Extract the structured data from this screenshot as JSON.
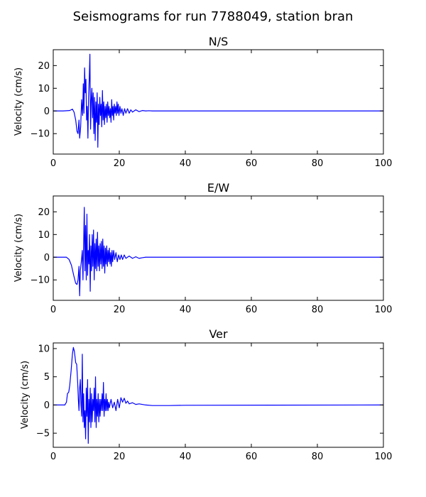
{
  "figure": {
    "title": "Seismograms for run 7788049, station bran"
  },
  "chart_data": [
    {
      "type": "line",
      "title": "N/S",
      "xlabel": "",
      "ylabel": "Velocity (cm/s)",
      "xlim": [
        0,
        100
      ],
      "ylim": [
        -19,
        27
      ],
      "xticks": [
        0,
        20,
        40,
        60,
        80,
        100
      ],
      "yticks": [
        -10,
        0,
        10,
        20
      ],
      "grid": false,
      "series": [
        {
          "color": "#0000ff",
          "points": [
            [
              0,
              0
            ],
            [
              3,
              0
            ],
            [
              5,
              0.2
            ],
            [
              5.8,
              0.8
            ],
            [
              6.3,
              -0.5
            ],
            [
              6.8,
              -4
            ],
            [
              7.2,
              -9
            ],
            [
              7.5,
              -10
            ],
            [
              7.8,
              -4
            ],
            [
              8.0,
              -12
            ],
            [
              8.3,
              -7
            ],
            [
              8.6,
              5
            ],
            [
              8.9,
              -2
            ],
            [
              9.1,
              12
            ],
            [
              9.3,
              -1
            ],
            [
              9.5,
              19
            ],
            [
              9.7,
              8
            ],
            [
              9.9,
              14
            ],
            [
              10.1,
              -4
            ],
            [
              10.3,
              2
            ],
            [
              10.5,
              -12
            ],
            [
              10.7,
              6
            ],
            [
              10.9,
              14
            ],
            [
              11.1,
              25
            ],
            [
              11.3,
              -8
            ],
            [
              11.5,
              5
            ],
            [
              11.7,
              10
            ],
            [
              11.9,
              -3
            ],
            [
              12.1,
              8
            ],
            [
              12.3,
              -10
            ],
            [
              12.5,
              6
            ],
            [
              12.7,
              -13
            ],
            [
              12.9,
              4
            ],
            [
              13.1,
              -5
            ],
            [
              13.3,
              8
            ],
            [
              13.5,
              -16
            ],
            [
              13.7,
              3
            ],
            [
              13.9,
              -6
            ],
            [
              14.1,
              6
            ],
            [
              14.3,
              -2
            ],
            [
              14.5,
              3
            ],
            [
              14.7,
              -7
            ],
            [
              14.9,
              9
            ],
            [
              15.1,
              -4
            ],
            [
              15.3,
              4
            ],
            [
              15.5,
              -6
            ],
            [
              15.7,
              2
            ],
            [
              15.9,
              -3
            ],
            [
              16.1,
              3
            ],
            [
              16.3,
              -5
            ],
            [
              16.5,
              4
            ],
            [
              16.7,
              -2
            ],
            [
              16.9,
              2
            ],
            [
              17.1,
              -3
            ],
            [
              17.3,
              1
            ],
            [
              17.5,
              -5
            ],
            [
              17.7,
              5
            ],
            [
              17.9,
              -2
            ],
            [
              18.1,
              2
            ],
            [
              18.3,
              -4
            ],
            [
              18.5,
              3
            ],
            [
              18.7,
              -1
            ],
            [
              18.9,
              2
            ],
            [
              19.1,
              -2
            ],
            [
              19.3,
              4
            ],
            [
              19.5,
              -1
            ],
            [
              19.7,
              3
            ],
            [
              19.9,
              -2
            ],
            [
              20.2,
              2
            ],
            [
              20.5,
              -1
            ],
            [
              20.8,
              1
            ],
            [
              21.2,
              -2
            ],
            [
              21.6,
              1
            ],
            [
              22,
              -1
            ],
            [
              22.5,
              1
            ],
            [
              23,
              -1
            ],
            [
              23.5,
              0.5
            ],
            [
              24,
              -0.5
            ],
            [
              25,
              0.5
            ],
            [
              26,
              -0.3
            ],
            [
              27,
              0.2
            ],
            [
              28,
              0
            ],
            [
              29,
              0.1
            ],
            [
              30,
              0
            ],
            [
              100,
              0
            ]
          ]
        }
      ]
    },
    {
      "type": "line",
      "title": "E/W",
      "xlabel": "",
      "ylabel": "Velocity (cm/s)",
      "xlim": [
        0,
        100
      ],
      "ylim": [
        -19,
        27
      ],
      "xticks": [
        0,
        20,
        40,
        60,
        80,
        100
      ],
      "yticks": [
        -10,
        0,
        10,
        20
      ],
      "grid": false,
      "series": [
        {
          "color": "#0000ff",
          "points": [
            [
              0,
              0
            ],
            [
              3,
              0
            ],
            [
              4,
              0
            ],
            [
              4.8,
              -1
            ],
            [
              5.5,
              -3.5
            ],
            [
              6.2,
              -8
            ],
            [
              6.8,
              -11.5
            ],
            [
              7.2,
              -12
            ],
            [
              7.5,
              -10
            ],
            [
              7.8,
              -4
            ],
            [
              8.0,
              -17
            ],
            [
              8.2,
              -6
            ],
            [
              8.5,
              -2
            ],
            [
              8.8,
              3
            ],
            [
              9.0,
              -10
            ],
            [
              9.2,
              5
            ],
            [
              9.4,
              22
            ],
            [
              9.6,
              -6
            ],
            [
              9.8,
              14
            ],
            [
              10.0,
              -10
            ],
            [
              10.2,
              19
            ],
            [
              10.4,
              -8
            ],
            [
              10.6,
              3
            ],
            [
              10.8,
              -3
            ],
            [
              11.0,
              10
            ],
            [
              11.2,
              -15
            ],
            [
              11.4,
              5
            ],
            [
              11.6,
              -6
            ],
            [
              11.8,
              10
            ],
            [
              12.0,
              -4
            ],
            [
              12.2,
              12
            ],
            [
              12.4,
              -10
            ],
            [
              12.6,
              6
            ],
            [
              12.8,
              -5
            ],
            [
              13.0,
              8
            ],
            [
              13.2,
              -6
            ],
            [
              13.4,
              11
            ],
            [
              13.6,
              -4
            ],
            [
              13.8,
              5
            ],
            [
              14.0,
              -6
            ],
            [
              14.2,
              6
            ],
            [
              14.4,
              -3
            ],
            [
              14.6,
              7
            ],
            [
              14.8,
              -5
            ],
            [
              15.0,
              8
            ],
            [
              15.2,
              -4
            ],
            [
              15.4,
              5
            ],
            [
              15.6,
              -7
            ],
            [
              15.8,
              4
            ],
            [
              16.0,
              -3
            ],
            [
              16.2,
              5
            ],
            [
              16.4,
              -4
            ],
            [
              16.6,
              3
            ],
            [
              16.8,
              -2
            ],
            [
              17.0,
              4
            ],
            [
              17.2,
              -3
            ],
            [
              17.4,
              2
            ],
            [
              17.6,
              -4
            ],
            [
              17.8,
              3
            ],
            [
              18.0,
              -2
            ],
            [
              18.3,
              3
            ],
            [
              18.6,
              -1
            ],
            [
              19.0,
              2
            ],
            [
              19.4,
              -2
            ],
            [
              19.8,
              1
            ],
            [
              20.2,
              -1
            ],
            [
              20.6,
              1
            ],
            [
              21,
              -1
            ],
            [
              21.5,
              1
            ],
            [
              22,
              -0.5
            ],
            [
              23,
              0.5
            ],
            [
              24,
              -0.5
            ],
            [
              25,
              0.2
            ],
            [
              26,
              -0.5
            ],
            [
              27,
              -0.2
            ],
            [
              28,
              0
            ],
            [
              100,
              0
            ]
          ]
        }
      ]
    },
    {
      "type": "line",
      "title": "Ver",
      "xlabel": "",
      "ylabel": "Velocity (cm/s)",
      "xlim": [
        0,
        100
      ],
      "ylim": [
        -7.5,
        11
      ],
      "xticks": [
        0,
        20,
        40,
        60,
        80,
        100
      ],
      "yticks": [
        -5,
        0,
        5,
        10
      ],
      "grid": false,
      "series": [
        {
          "color": "#0000ff",
          "points": [
            [
              0,
              0
            ],
            [
              3.5,
              0
            ],
            [
              4.0,
              0.5
            ],
            [
              4.3,
              2
            ],
            [
              4.7,
              2.3
            ],
            [
              5.0,
              3.5
            ],
            [
              5.4,
              6
            ],
            [
              5.8,
              9
            ],
            [
              6.1,
              10.2
            ],
            [
              6.4,
              9.5
            ],
            [
              6.8,
              7.5
            ],
            [
              7.1,
              7.2
            ],
            [
              7.4,
              4
            ],
            [
              7.6,
              1
            ],
            [
              7.8,
              -1
            ],
            [
              8.0,
              3
            ],
            [
              8.2,
              4.5
            ],
            [
              8.4,
              0
            ],
            [
              8.6,
              -2
            ],
            [
              8.8,
              9
            ],
            [
              9.0,
              -3
            ],
            [
              9.2,
              2
            ],
            [
              9.4,
              -4
            ],
            [
              9.6,
              -1
            ],
            [
              9.8,
              -6
            ],
            [
              10.0,
              3
            ],
            [
              10.2,
              -2
            ],
            [
              10.4,
              4.5
            ],
            [
              10.6,
              -6.8
            ],
            [
              10.8,
              1
            ],
            [
              11.0,
              -3
            ],
            [
              11.2,
              3
            ],
            [
              11.4,
              -4
            ],
            [
              11.6,
              2
            ],
            [
              11.8,
              -3
            ],
            [
              12.0,
              1
            ],
            [
              12.2,
              -1
            ],
            [
              12.4,
              3
            ],
            [
              12.6,
              -3
            ],
            [
              12.8,
              5
            ],
            [
              13.0,
              -4
            ],
            [
              13.2,
              1
            ],
            [
              13.4,
              -2
            ],
            [
              13.6,
              2
            ],
            [
              13.8,
              -3
            ],
            [
              14.0,
              1
            ],
            [
              14.2,
              -2
            ],
            [
              14.4,
              1
            ],
            [
              14.6,
              -1
            ],
            [
              14.8,
              2
            ],
            [
              15.0,
              -1
            ],
            [
              15.2,
              4
            ],
            [
              15.4,
              -2
            ],
            [
              15.6,
              1
            ],
            [
              15.8,
              -1
            ],
            [
              16.0,
              2
            ],
            [
              16.2,
              -1
            ],
            [
              16.4,
              1
            ],
            [
              16.6,
              -1
            ],
            [
              16.8,
              0.5
            ],
            [
              17.0,
              -0.5
            ],
            [
              17.5,
              1
            ],
            [
              18,
              -0.5
            ],
            [
              18.5,
              0.5
            ],
            [
              19,
              -1
            ],
            [
              19.5,
              1
            ],
            [
              20,
              -0.5
            ],
            [
              20.5,
              1.3
            ],
            [
              21,
              0.5
            ],
            [
              21.5,
              1.2
            ],
            [
              22,
              0.3
            ],
            [
              22.5,
              0.7
            ],
            [
              23,
              0.2
            ],
            [
              24,
              0.4
            ],
            [
              25,
              0.1
            ],
            [
              26,
              0.2
            ],
            [
              28,
              0
            ],
            [
              30,
              -0.1
            ],
            [
              35,
              -0.1
            ],
            [
              40,
              -0.05
            ],
            [
              100,
              0
            ]
          ]
        }
      ]
    }
  ]
}
